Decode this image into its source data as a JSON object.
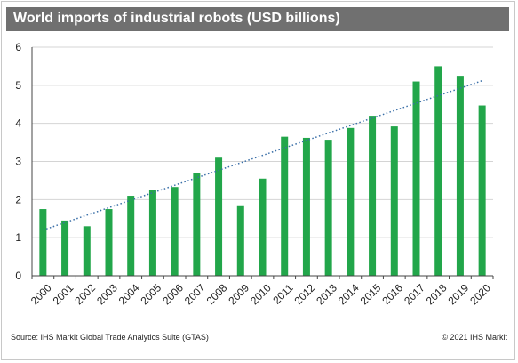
{
  "chart_data": {
    "type": "bar",
    "title": "World imports of industrial robots (USD billions)",
    "categories": [
      "2000",
      "2001",
      "2002",
      "2003",
      "2004",
      "2005",
      "2006",
      "2007",
      "2008",
      "2009",
      "2010",
      "2011",
      "2012",
      "2013",
      "2014",
      "2015",
      "2016",
      "2017",
      "2018",
      "2019",
      "2020"
    ],
    "values": [
      1.75,
      1.45,
      1.3,
      1.75,
      2.1,
      2.25,
      2.33,
      2.7,
      3.1,
      1.85,
      2.55,
      3.65,
      3.62,
      3.57,
      3.88,
      4.2,
      3.92,
      5.1,
      5.5,
      5.25,
      4.47
    ],
    "trendline": {
      "type": "linear",
      "style": "dotted",
      "color": "#3a6fa8",
      "start": 1.2,
      "end": 5.12
    },
    "ylim": [
      0,
      6
    ],
    "yticks": [
      "0",
      "1",
      "2",
      "3",
      "4",
      "5",
      "6"
    ],
    "grid": true,
    "bar_color": "#22a64a",
    "xlabel": "",
    "ylabel": ""
  },
  "footer": {
    "source": "Source: IHS Markit Global Trade Analytics Suite (GTAS)",
    "copyright": "© 2021 IHS Markit"
  }
}
